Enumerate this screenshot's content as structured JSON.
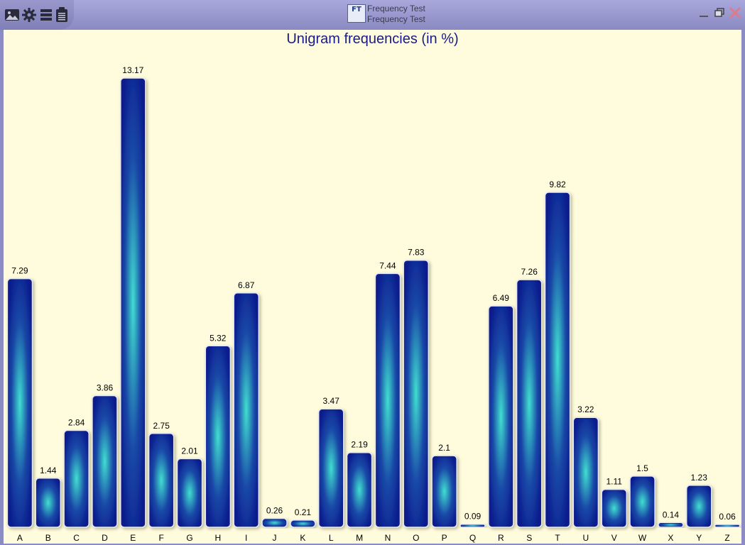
{
  "window": {
    "title": "Frequency Test",
    "subtitle": "Frequency Test",
    "app_icon_text": "FT"
  },
  "toolbar": {
    "icons": [
      "image-icon",
      "gear-icon",
      "list-icon",
      "clipboard-icon"
    ]
  },
  "colors": {
    "background": "#fefcdc",
    "bar_dark": "#0a1a8c",
    "bar_light": "#40e0d0",
    "title": "#1a1a8a"
  },
  "chart_data": {
    "type": "bar",
    "title": "Unigram frequencies (in %)",
    "categories": [
      "A",
      "B",
      "C",
      "D",
      "E",
      "F",
      "G",
      "H",
      "I",
      "J",
      "K",
      "L",
      "M",
      "N",
      "O",
      "P",
      "Q",
      "R",
      "S",
      "T",
      "U",
      "V",
      "W",
      "X",
      "Y",
      "Z"
    ],
    "values": [
      7.29,
      1.44,
      2.84,
      3.86,
      13.17,
      2.75,
      2.01,
      5.32,
      6.87,
      0.26,
      0.21,
      3.47,
      2.19,
      7.44,
      7.83,
      2.1,
      0.09,
      6.49,
      7.26,
      9.82,
      3.22,
      1.11,
      1.5,
      0.14,
      1.23,
      0.06
    ],
    "value_labels": [
      "7.29",
      "1.44",
      "2.84",
      "3.86",
      "13.17",
      "2.75",
      "2.01",
      "5.32",
      "6.87",
      "0.26",
      "0.21",
      "3.47",
      "2.19",
      "7.44",
      "7.83",
      "2.1",
      "0.09",
      "6.49",
      "7.26",
      "9.82",
      "3.22",
      "1.11",
      "1.5",
      "0.14",
      "1.23",
      "0.06"
    ],
    "xlabel": "",
    "ylabel": "",
    "ylim": [
      0,
      13.17
    ],
    "grid": false,
    "legend": "none"
  }
}
